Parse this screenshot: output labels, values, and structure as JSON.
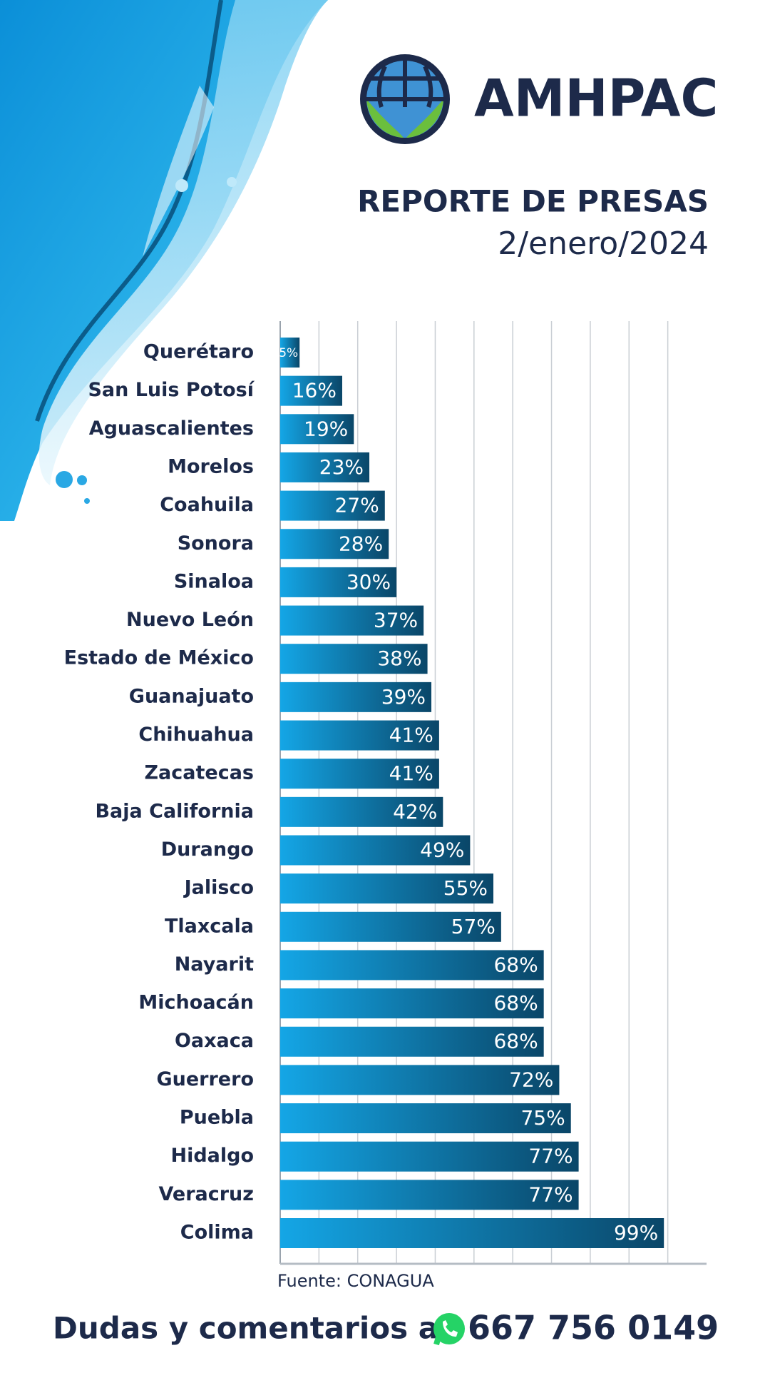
{
  "header": {
    "logo_text": "AMHPAC"
  },
  "chart_data": {
    "type": "bar",
    "orientation": "horizontal",
    "title": "REPORTE DE PRESAS",
    "subtitle": "2/enero/2024",
    "categories": [
      "Querétaro",
      "San Luis Potosí",
      "Aguascalientes",
      "Morelos",
      "Coahuila",
      "Sonora",
      "Sinaloa",
      "Nuevo León",
      "Estado de México",
      "Guanajuato",
      "Chihuahua",
      "Zacatecas",
      "Baja California",
      "Durango",
      "Jalisco",
      "Tlaxcala",
      "Nayarit",
      "Michoacán",
      "Oaxaca",
      "Guerrero",
      "Puebla",
      "Hidalgo",
      "Veracruz",
      "Colima"
    ],
    "values": [
      5,
      16,
      19,
      23,
      27,
      28,
      30,
      37,
      38,
      39,
      41,
      41,
      42,
      49,
      55,
      57,
      68,
      68,
      68,
      72,
      75,
      77,
      77,
      99
    ],
    "value_labels": [
      "5%",
      "16%",
      "19%",
      "23%",
      "27%",
      "28%",
      "30%",
      "37%",
      "38%",
      "39%",
      "41%",
      "41%",
      "42%",
      "49%",
      "55%",
      "57%",
      "68%",
      "68%",
      "68%",
      "72%",
      "75%",
      "77%",
      "77%",
      "99%"
    ],
    "xlim": [
      0,
      110
    ],
    "xticks": [
      0,
      10,
      20,
      30,
      40,
      50,
      60,
      70,
      80,
      90,
      100
    ],
    "grid": true,
    "gradient": [
      "#14a6e6",
      "#0a4668"
    ],
    "source": "Fuente: CONAGUA"
  },
  "footer": {
    "text": "Dudas y comentarios al",
    "phone": "667 756 0149"
  }
}
